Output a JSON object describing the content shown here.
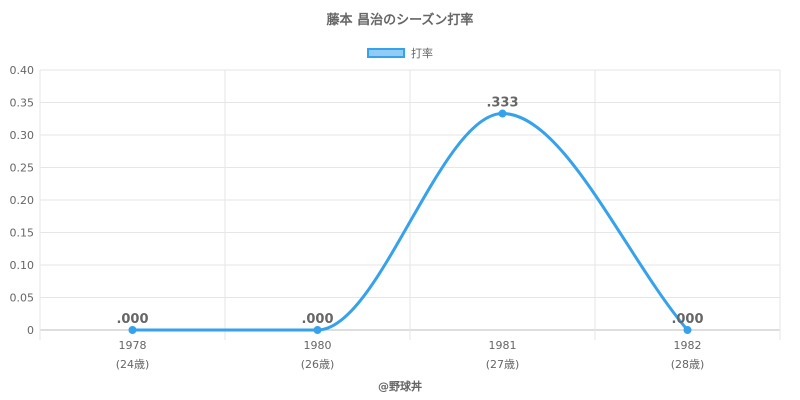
{
  "chart_data": {
    "type": "line",
    "title": "藤本 昌治のシーズン打率",
    "legend": {
      "label": "打率",
      "position": "top"
    },
    "x": [
      "1978",
      "1980",
      "1981",
      "1982"
    ],
    "x_sub": [
      "(24歳)",
      "(26歳)",
      "(27歳)",
      "(28歳)"
    ],
    "series": [
      {
        "name": "打率",
        "values": [
          0,
          0,
          0.333,
          0
        ],
        "labels": [
          ".000",
          ".000",
          ".333",
          ".000"
        ]
      }
    ],
    "ylim": [
      0,
      0.4
    ],
    "yticks": [
      "0",
      "0.05",
      "0.10",
      "0.15",
      "0.20",
      "0.25",
      "0.30",
      "0.35",
      "0.40"
    ],
    "grid": true,
    "colors": {
      "line": "#36a2eb",
      "grid": "#e6e6e6"
    }
  },
  "footer": {
    "credit": "@野球丼"
  }
}
